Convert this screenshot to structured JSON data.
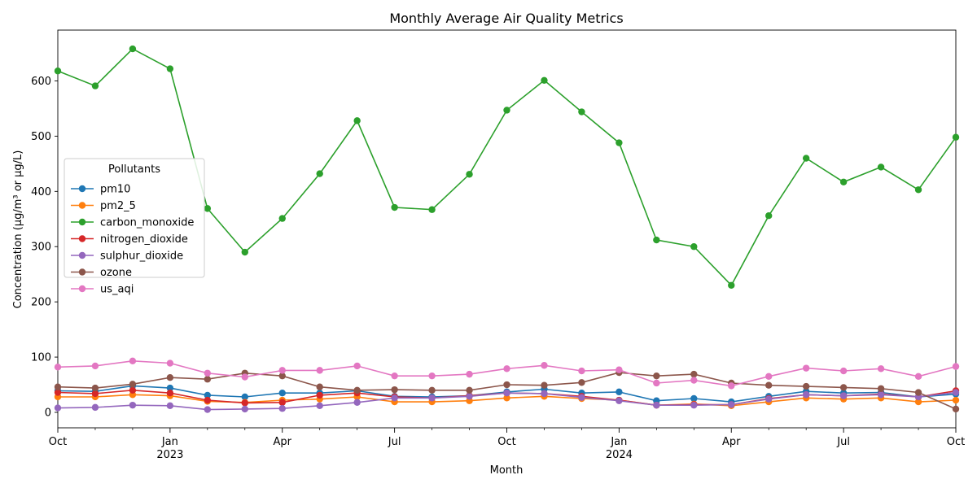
{
  "chart_data": {
    "type": "line",
    "title": "Monthly Average Air Quality Metrics",
    "xlabel": "Month",
    "ylabel": "Concentration (µg/m³ or µg/L)",
    "ylim": [
      -28,
      692
    ],
    "y_ticks": [
      0,
      100,
      200,
      300,
      400,
      500,
      600
    ],
    "x_ticks": [
      {
        "index": 0,
        "label": "Oct",
        "sub": ""
      },
      {
        "index": 3,
        "label": "Jan",
        "sub": "2023"
      },
      {
        "index": 6,
        "label": "Apr",
        "sub": ""
      },
      {
        "index": 9,
        "label": "Jul",
        "sub": ""
      },
      {
        "index": 12,
        "label": "Oct",
        "sub": ""
      },
      {
        "index": 15,
        "label": "Jan",
        "sub": "2024"
      },
      {
        "index": 18,
        "label": "Apr",
        "sub": ""
      },
      {
        "index": 21,
        "label": "Jul",
        "sub": ""
      },
      {
        "index": 24,
        "label": "Oct",
        "sub": ""
      }
    ],
    "grid": false,
    "legend": {
      "title": "Pollutants",
      "placement": "center-left"
    },
    "x": [
      "2022-10",
      "2022-11",
      "2022-12",
      "2023-01",
      "2023-02",
      "2023-03",
      "2023-04",
      "2023-05",
      "2023-06",
      "2023-07",
      "2023-08",
      "2023-09",
      "2023-10",
      "2023-11",
      "2023-12",
      "2024-01",
      "2024-02",
      "2024-03",
      "2024-04",
      "2024-05",
      "2024-06",
      "2024-07",
      "2024-08",
      "2024-09",
      "2024-10"
    ],
    "series": [
      {
        "name": "pm10",
        "color": "#1f77b4",
        "values": [
          39,
          38,
          48,
          44,
          31,
          28,
          35,
          35,
          39,
          29,
          28,
          30,
          37,
          42,
          35,
          37,
          21,
          25,
          19,
          29,
          38,
          35,
          36,
          28,
          33
        ]
      },
      {
        "name": "pm2_5",
        "color": "#ff7f0e",
        "values": [
          28,
          28,
          32,
          30,
          20,
          18,
          22,
          24,
          28,
          19,
          19,
          21,
          26,
          29,
          25,
          22,
          13,
          15,
          12,
          19,
          26,
          24,
          26,
          19,
          22
        ]
      },
      {
        "name": "carbon_monoxide",
        "color": "#2ca02c",
        "values": [
          618,
          591,
          658,
          622,
          369,
          290,
          351,
          432,
          528,
          371,
          367,
          431,
          547,
          601,
          544,
          488,
          312,
          300,
          230,
          356,
          460,
          417,
          444,
          403,
          498
        ]
      },
      {
        "name": "nitrogen_dioxide",
        "color": "#d62728",
        "values": [
          36,
          34,
          40,
          35,
          22,
          17,
          18,
          31,
          35,
          28,
          26,
          30,
          35,
          34,
          29,
          22,
          13,
          14,
          14,
          25,
          32,
          30,
          33,
          28,
          39
        ]
      },
      {
        "name": "sulphur_dioxide",
        "color": "#9467bd",
        "values": [
          8,
          9,
          13,
          12,
          5,
          6,
          7,
          12,
          18,
          26,
          26,
          29,
          35,
          34,
          27,
          21,
          13,
          13,
          14,
          24,
          32,
          30,
          32,
          28,
          36
        ]
      },
      {
        "name": "ozone",
        "color": "#8c564b",
        "values": [
          46,
          44,
          51,
          63,
          60,
          71,
          66,
          46,
          40,
          41,
          40,
          40,
          50,
          49,
          54,
          72,
          66,
          69,
          53,
          49,
          47,
          45,
          43,
          36,
          6
        ]
      },
      {
        "name": "us_aqi",
        "color": "#e377c2",
        "values": [
          82,
          84,
          93,
          89,
          71,
          64,
          76,
          76,
          84,
          66,
          66,
          69,
          79,
          85,
          75,
          77,
          53,
          58,
          48,
          65,
          80,
          75,
          79,
          65,
          83
        ]
      }
    ]
  }
}
